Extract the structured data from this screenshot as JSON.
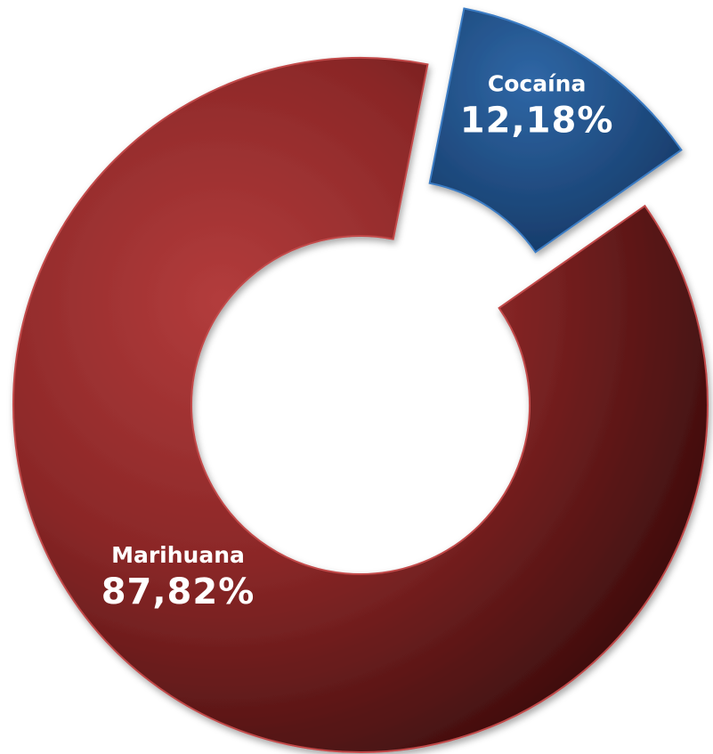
{
  "chart_data": {
    "type": "pie",
    "title": "",
    "categories": [
      "Marihuana",
      "Cocaína"
    ],
    "values": [
      87.82,
      12.18
    ],
    "value_labels": [
      "87,82%",
      "12,18%"
    ],
    "colors": [
      "#8e2a2a",
      "#1f4e85"
    ],
    "donut": true,
    "exploded": [
      "Cocaína"
    ],
    "legend": "none"
  }
}
